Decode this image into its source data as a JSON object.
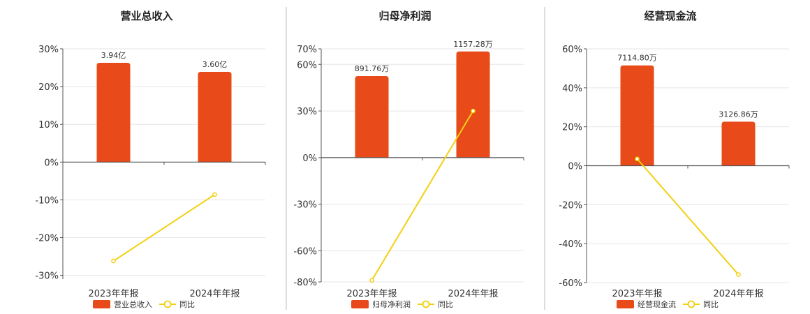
{
  "colors": {
    "bar": "#e84a1a",
    "line": "#f2d011",
    "grid": "#e6e6e6",
    "axis": "#555555",
    "divider": "#bbbbbb"
  },
  "chart_data": [
    {
      "type": "bar",
      "title": "营业总收入",
      "categories": [
        "2023年年报",
        "2024年年报"
      ],
      "bar_series": {
        "name": "营业总收入",
        "values": [
          26.3,
          23.9
        ],
        "labels": [
          "3.94亿",
          "3.60亿"
        ]
      },
      "line_series": {
        "name": "同比",
        "values": [
          -26.2,
          -8.6
        ]
      },
      "yticks": [
        30,
        20,
        10,
        0,
        -10,
        -20,
        -30
      ],
      "ytick_labels": [
        "30%",
        "20%",
        "10%",
        "0%",
        "-10%",
        "-20%",
        "-30%"
      ],
      "ylim": [
        -31,
        30
      ],
      "grid": true,
      "legend": "bottom"
    },
    {
      "type": "bar",
      "title": "归母净利润",
      "categories": [
        "2023年年报",
        "2024年年报"
      ],
      "bar_series": {
        "name": "归母净利润",
        "values": [
          52.5,
          68.3
        ],
        "labels": [
          "891.76万",
          "1157.28万"
        ]
      },
      "line_series": {
        "name": "同比",
        "values": [
          -79,
          30
        ]
      },
      "yticks": [
        70,
        60,
        30,
        0,
        -30,
        -60,
        -80
      ],
      "ytick_labels": [
        "70%",
        "60%",
        "30%",
        "0%",
        "-30%",
        "-60%",
        "-80%"
      ],
      "ylim": [
        -80,
        70
      ],
      "grid": true,
      "legend": "bottom"
    },
    {
      "type": "bar",
      "title": "经营现金流",
      "categories": [
        "2023年年报",
        "2024年年报"
      ],
      "bar_series": {
        "name": "经营现金流",
        "values": [
          51.5,
          22.6
        ],
        "labels": [
          "7114.80万",
          "3126.86万"
        ]
      },
      "line_series": {
        "name": "同比",
        "values": [
          3.5,
          -55.9
        ]
      },
      "yticks": [
        60,
        40,
        20,
        0,
        -20,
        -40,
        -60
      ],
      "ytick_labels": [
        "60%",
        "40%",
        "20%",
        "0%",
        "-20%",
        "-40%",
        "-60%"
      ],
      "ylim": [
        -60,
        60
      ],
      "grid": true,
      "legend": "bottom"
    }
  ]
}
